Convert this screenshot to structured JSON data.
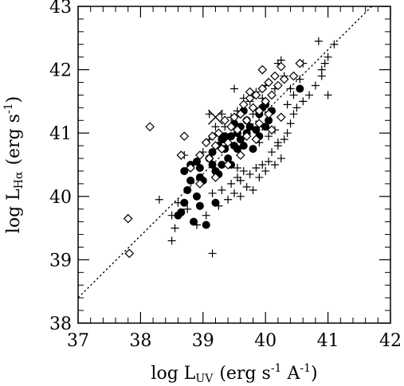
{
  "chart_data": {
    "type": "scatter",
    "xlabel": "log L",
    "xlabel_sub": "UV",
    "xlabel_units": "(erg s",
    "xlabel_units_exp1": "-1",
    "xlabel_units_mid": " A",
    "xlabel_units_exp2": "-1",
    "xlabel_units_end": ")",
    "ylabel": "log L",
    "ylabel_sub": "Hα",
    "ylabel_units": "(erg s",
    "ylabel_units_exp": "-1",
    "ylabel_units_end": ")",
    "xlim": [
      37,
      42
    ],
    "ylim": [
      38,
      43
    ],
    "x_ticks": [
      "37",
      "38",
      "39",
      "40",
      "41",
      "42"
    ],
    "y_ticks": [
      "38",
      "39",
      "40",
      "41",
      "42",
      "43"
    ],
    "grid": false,
    "reference_line": {
      "style": "dotted",
      "points": [
        [
          37,
          38.4
        ],
        [
          41.7,
          43
        ]
      ]
    },
    "series": [
      {
        "marker": "filled-circle",
        "points": [
          [
            38.6,
            39.7
          ],
          [
            38.65,
            39.75
          ],
          [
            38.7,
            39.9
          ],
          [
            38.75,
            40.1
          ],
          [
            38.8,
            40.25
          ],
          [
            38.85,
            39.6
          ],
          [
            38.9,
            40.0
          ],
          [
            38.95,
            40.3
          ],
          [
            38.7,
            40.4
          ],
          [
            38.8,
            40.5
          ],
          [
            38.95,
            39.85
          ],
          [
            39.0,
            40.25
          ],
          [
            39.05,
            39.55
          ],
          [
            39.1,
            40.6
          ],
          [
            39.15,
            40.5
          ],
          [
            39.15,
            40.7
          ],
          [
            39.2,
            40.4
          ],
          [
            39.25,
            40.35
          ],
          [
            39.2,
            39.9
          ],
          [
            39.3,
            40.5
          ],
          [
            39.35,
            40.75
          ],
          [
            39.3,
            40.9
          ],
          [
            39.4,
            40.6
          ],
          [
            39.45,
            40.5
          ],
          [
            39.45,
            40.95
          ],
          [
            39.5,
            40.8
          ],
          [
            39.55,
            41.0
          ],
          [
            39.6,
            40.9
          ],
          [
            39.6,
            41.1
          ],
          [
            39.65,
            40.8
          ],
          [
            39.7,
            41.0
          ],
          [
            39.7,
            41.2
          ],
          [
            39.75,
            41.1
          ],
          [
            39.8,
            40.75
          ],
          [
            39.85,
            41.05
          ],
          [
            39.9,
            40.95
          ],
          [
            39.9,
            41.3
          ],
          [
            39.95,
            41.4
          ],
          [
            40.0,
            41.1
          ],
          [
            40.05,
            41.2
          ],
          [
            40.1,
            41.35
          ],
          [
            39.55,
            40.75
          ],
          [
            39.35,
            40.95
          ],
          [
            39.65,
            41.35
          ],
          [
            40.0,
            41.45
          ],
          [
            40.55,
            41.7
          ],
          [
            38.95,
            40.45
          ],
          [
            39.25,
            40.8
          ],
          [
            39.5,
            41.15
          ],
          [
            38.9,
            40.55
          ]
        ]
      },
      {
        "marker": "plus",
        "points": [
          [
            38.3,
            39.95
          ],
          [
            38.5,
            39.3
          ],
          [
            38.55,
            39.5
          ],
          [
            38.6,
            39.9
          ],
          [
            38.75,
            39.8
          ],
          [
            38.9,
            39.55
          ],
          [
            39.05,
            39.7
          ],
          [
            39.15,
            40.05
          ],
          [
            39.25,
            39.85
          ],
          [
            39.3,
            40.1
          ],
          [
            39.4,
            39.95
          ],
          [
            39.45,
            40.2
          ],
          [
            39.5,
            40.05
          ],
          [
            39.55,
            40.3
          ],
          [
            39.6,
            40.0
          ],
          [
            39.6,
            40.25
          ],
          [
            39.65,
            40.4
          ],
          [
            39.7,
            40.15
          ],
          [
            39.75,
            40.35
          ],
          [
            39.8,
            40.1
          ],
          [
            39.85,
            40.45
          ],
          [
            39.9,
            40.3
          ],
          [
            39.95,
            40.5
          ],
          [
            40.0,
            40.4
          ],
          [
            40.05,
            40.55
          ],
          [
            40.1,
            40.7
          ],
          [
            40.15,
            40.5
          ],
          [
            40.2,
            40.8
          ],
          [
            40.25,
            40.6
          ],
          [
            40.3,
            40.9
          ],
          [
            40.35,
            41.0
          ],
          [
            40.4,
            41.15
          ],
          [
            40.45,
            41.3
          ],
          [
            40.5,
            41.4
          ],
          [
            40.6,
            41.5
          ],
          [
            40.7,
            41.6
          ],
          [
            40.8,
            41.75
          ],
          [
            40.9,
            41.9
          ],
          [
            41.0,
            42.2
          ],
          [
            41.1,
            42.4
          ],
          [
            40.95,
            42.1
          ],
          [
            40.85,
            42.45
          ],
          [
            40.4,
            41.7
          ],
          [
            40.3,
            41.9
          ],
          [
            40.2,
            42.1
          ],
          [
            40.25,
            42.15
          ],
          [
            40.15,
            41.7
          ],
          [
            40.0,
            41.75
          ],
          [
            39.95,
            41.55
          ],
          [
            39.85,
            41.65
          ],
          [
            39.75,
            41.5
          ],
          [
            39.65,
            41.45
          ],
          [
            39.55,
            41.35
          ],
          [
            39.45,
            41.25
          ],
          [
            39.3,
            41.3
          ],
          [
            39.2,
            41.1
          ],
          [
            39.1,
            40.9
          ],
          [
            39.0,
            40.7
          ],
          [
            38.85,
            40.5
          ],
          [
            38.75,
            40.45
          ],
          [
            39.55,
            40.45
          ],
          [
            39.35,
            41.1
          ],
          [
            39.65,
            41.55
          ],
          [
            39.8,
            41.3
          ],
          [
            39.95,
            41.1
          ],
          [
            40.05,
            40.95
          ],
          [
            40.15,
            41.05
          ],
          [
            40.35,
            41.45
          ],
          [
            40.45,
            41.6
          ],
          [
            40.55,
            41.85
          ],
          [
            41.0,
            41.6
          ],
          [
            40.9,
            42.0
          ],
          [
            39.1,
            41.3
          ],
          [
            39.5,
            41.7
          ],
          [
            40.2,
            40.85
          ],
          [
            39.15,
            39.1
          ],
          [
            38.5,
            39.7
          ],
          [
            38.7,
            40.65
          ],
          [
            39.9,
            40.85
          ],
          [
            40.6,
            42.1
          ]
        ]
      },
      {
        "marker": "open-diamond",
        "points": [
          [
            37.8,
            39.65
          ],
          [
            37.82,
            39.1
          ],
          [
            38.15,
            41.1
          ],
          [
            38.65,
            40.65
          ],
          [
            38.8,
            40.45
          ],
          [
            38.95,
            40.2
          ],
          [
            39.05,
            40.85
          ],
          [
            39.1,
            40.6
          ],
          [
            39.15,
            40.95
          ],
          [
            39.2,
            40.8
          ],
          [
            39.25,
            41.0
          ],
          [
            39.3,
            40.75
          ],
          [
            39.35,
            41.2
          ],
          [
            39.4,
            40.85
          ],
          [
            39.45,
            41.1
          ],
          [
            39.5,
            41.25
          ],
          [
            39.55,
            41.05
          ],
          [
            39.6,
            41.3
          ],
          [
            39.65,
            41.45
          ],
          [
            39.7,
            41.2
          ],
          [
            39.75,
            41.55
          ],
          [
            39.8,
            41.4
          ],
          [
            39.85,
            41.6
          ],
          [
            39.9,
            41.35
          ],
          [
            39.95,
            41.7
          ],
          [
            40.0,
            41.5
          ],
          [
            40.05,
            41.8
          ],
          [
            40.1,
            41.6
          ],
          [
            40.15,
            41.9
          ],
          [
            40.2,
            41.75
          ],
          [
            40.25,
            42.05
          ],
          [
            40.3,
            41.85
          ],
          [
            40.45,
            41.9
          ],
          [
            40.55,
            42.1
          ],
          [
            39.95,
            42.0
          ],
          [
            39.75,
            41.65
          ],
          [
            39.9,
            41.15
          ],
          [
            40.05,
            41.3
          ],
          [
            39.2,
            40.3
          ],
          [
            38.95,
            40.65
          ],
          [
            38.7,
            40.95
          ],
          [
            39.4,
            40.5
          ],
          [
            39.6,
            40.65
          ],
          [
            40.1,
            41.05
          ],
          [
            40.25,
            41.25
          ],
          [
            39.85,
            40.9
          ],
          [
            39.7,
            40.95
          ]
        ]
      },
      {
        "marker": "cross",
        "points": [
          [
            39.2,
            41.25
          ]
        ]
      }
    ]
  }
}
